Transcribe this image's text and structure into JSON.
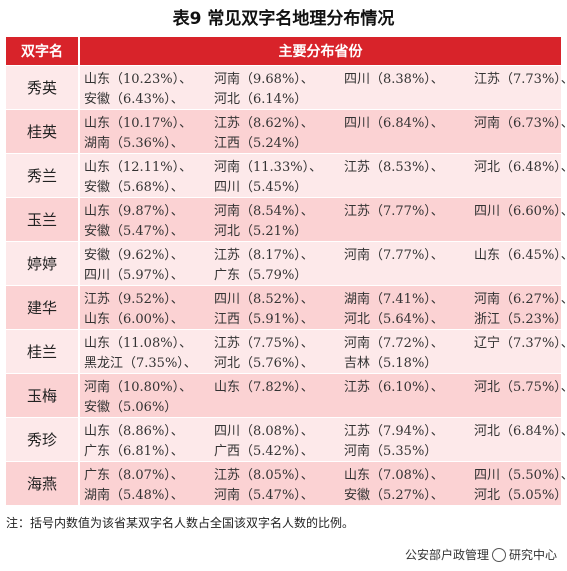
{
  "title": "表9  常见双字名地理分布情况",
  "table": {
    "headers": {
      "name": "双字名",
      "provinces": "主要分布省份"
    },
    "rows": [
      {
        "name": "秀英",
        "lines": [
          [
            "山东（10.23%）、",
            "河南（9.68%）、",
            "四川（8.38%）、",
            "江苏（7.73%）、"
          ],
          [
            "安徽（6.43%）、",
            "河北（6.14%）"
          ]
        ]
      },
      {
        "name": "桂英",
        "lines": [
          [
            "山东（10.17%）、",
            "江苏（8.62%）、",
            "四川（6.84%）、",
            "河南（6.73%）、"
          ],
          [
            "湖南（5.36%）、",
            "江西（5.24%）"
          ]
        ]
      },
      {
        "name": "秀兰",
        "lines": [
          [
            "山东（12.11%）、",
            "河南（11.33%）、",
            "江苏（8.53%）、",
            "河北（6.48%）、"
          ],
          [
            "安徽（5.68%）、",
            "四川（5.45%）"
          ]
        ]
      },
      {
        "name": "玉兰",
        "lines": [
          [
            "山东（9.87%）、",
            "河南（8.54%）、",
            "江苏（7.77%）、",
            "四川（6.60%）、"
          ],
          [
            "安徽（5.47%）、",
            "河北（5.21%）"
          ]
        ]
      },
      {
        "name": "婷婷",
        "lines": [
          [
            "安徽（9.62%）、",
            "江苏（8.17%）、",
            "河南（7.77%）、",
            "山东（6.45%）、"
          ],
          [
            "四川（5.97%）、",
            "广东（5.79%）"
          ]
        ]
      },
      {
        "name": "建华",
        "lines": [
          [
            "江苏（9.52%）、",
            "四川（8.52%）、",
            "湖南（7.41%）、",
            "河南（6.27%）、"
          ],
          [
            "山东（6.00%）、",
            "江西（5.91%）、",
            "河北（5.64%）、",
            "浙江（5.23%）"
          ]
        ]
      },
      {
        "name": "桂兰",
        "lines": [
          [
            "山东（11.08%）、",
            "江苏（7.75%）、",
            "河南（7.72%）、",
            "辽宁（7.37%）、"
          ],
          [
            "黑龙江（7.35%）、",
            "河北（5.76%）、",
            "吉林（5.18%）"
          ]
        ]
      },
      {
        "name": "玉梅",
        "lines": [
          [
            "河南（10.80%）、",
            "山东（7.82%）、",
            "江苏（6.10%）、",
            "河北（5.75%）、"
          ],
          [
            "安徽（5.06%）"
          ]
        ]
      },
      {
        "name": "秀珍",
        "lines": [
          [
            "山东（8.86%）、",
            "四川（8.08%）、",
            "江苏（7.94%）、",
            "河北（6.84%）、"
          ],
          [
            "广东（6.81%）、",
            "广西（5.42%）、",
            "河南（5.35%）"
          ]
        ]
      },
      {
        "name": "海燕",
        "lines": [
          [
            "广东（8.07%）、",
            "江苏（8.05%）、",
            "山东（7.08%）、",
            "四川（5.50%）、"
          ],
          [
            "湖南（5.48%）、",
            "河南（5.47%）、",
            "安徽（5.27%）、",
            "河北（5.05%）"
          ]
        ]
      }
    ]
  },
  "note": "注：括号内数值为该省某双字名人数占全国该双字名人数的比例。",
  "watermark": {
    "left_text": "公安部户政管理",
    "right_text": "研究中心",
    "icon": "wechat-icon"
  },
  "colors": {
    "header_bg": "#d8232a",
    "row_light": "#fde9ea",
    "row_dark": "#fbd2d3"
  }
}
